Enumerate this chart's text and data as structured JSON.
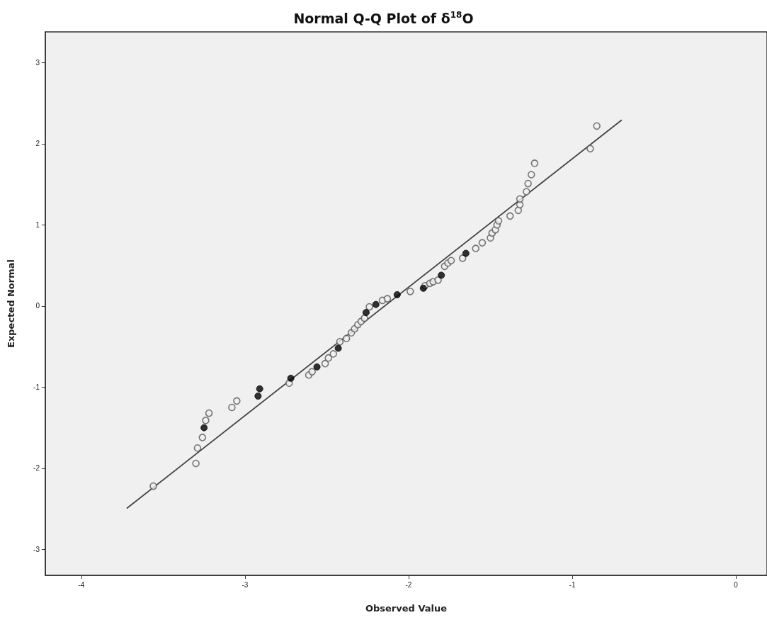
{
  "chart_data": {
    "type": "scatter",
    "title": "Normal Q-Q Plot of δ$^{18}$O",
    "xlabel": "Observed Value",
    "ylabel": "Expected Normal",
    "xlim": [
      -4.22,
      0.19
    ],
    "xticks": [
      -4,
      -3,
      -2,
      -1,
      0
    ],
    "ylim": [
      -3.32,
      3.38
    ],
    "yticks": [
      -3,
      -2,
      -1,
      0,
      1,
      2,
      3
    ],
    "grid": false,
    "marker": "circle",
    "series": [
      {
        "color": "#555555",
        "x": [
          -3.56,
          -3.3,
          -3.29,
          -3.26,
          -3.24,
          -3.22,
          -3.08,
          -3.05,
          -2.73,
          -2.61,
          -2.59,
          -2.51,
          -2.49,
          -2.46,
          -2.42,
          -2.38,
          -2.35,
          -2.33,
          -2.31,
          -2.29,
          -2.27,
          -2.24,
          -2.16,
          -2.13,
          -1.99,
          -1.9,
          -1.87,
          -1.85,
          -1.82,
          -1.78,
          -1.76,
          -1.74,
          -1.67,
          -1.59,
          -1.55,
          -1.5,
          -1.49,
          -1.47,
          -1.46,
          -1.45,
          -1.38,
          -1.33,
          -1.32,
          -1.32,
          -1.28,
          -1.27,
          -1.25,
          -1.23,
          -0.89,
          -0.85
        ],
        "values": [
          -2.22,
          -1.94,
          -1.75,
          -1.62,
          -1.41,
          -1.32,
          -1.25,
          -1.17,
          -0.95,
          -0.85,
          -0.81,
          -0.71,
          -0.64,
          -0.59,
          -0.44,
          -0.4,
          -0.33,
          -0.28,
          -0.23,
          -0.19,
          -0.15,
          -0.01,
          0.07,
          0.09,
          0.18,
          0.25,
          0.28,
          0.3,
          0.32,
          0.49,
          0.53,
          0.56,
          0.59,
          0.71,
          0.78,
          0.84,
          0.9,
          0.94,
          1.0,
          1.05,
          1.11,
          1.18,
          1.25,
          1.32,
          1.41,
          1.51,
          1.62,
          1.76,
          1.94,
          2.22
        ]
      },
      {
        "color": "#000000",
        "x": [
          -3.25,
          -2.92,
          -2.91,
          -2.72,
          -2.56,
          -2.43,
          -2.26,
          -2.2,
          -2.07,
          -1.91,
          -1.8,
          -1.65
        ],
        "values": [
          -1.5,
          -1.11,
          -1.02,
          -0.89,
          -0.75,
          -0.52,
          -0.08,
          0.02,
          0.14,
          0.22,
          0.38,
          0.65
        ]
      },
      {
        "type": "line",
        "color": "#444444",
        "marker": "none",
        "line_style": "solid",
        "x": [
          -3.72,
          -0.7
        ],
        "values": [
          -2.49,
          2.29
        ]
      }
    ]
  }
}
